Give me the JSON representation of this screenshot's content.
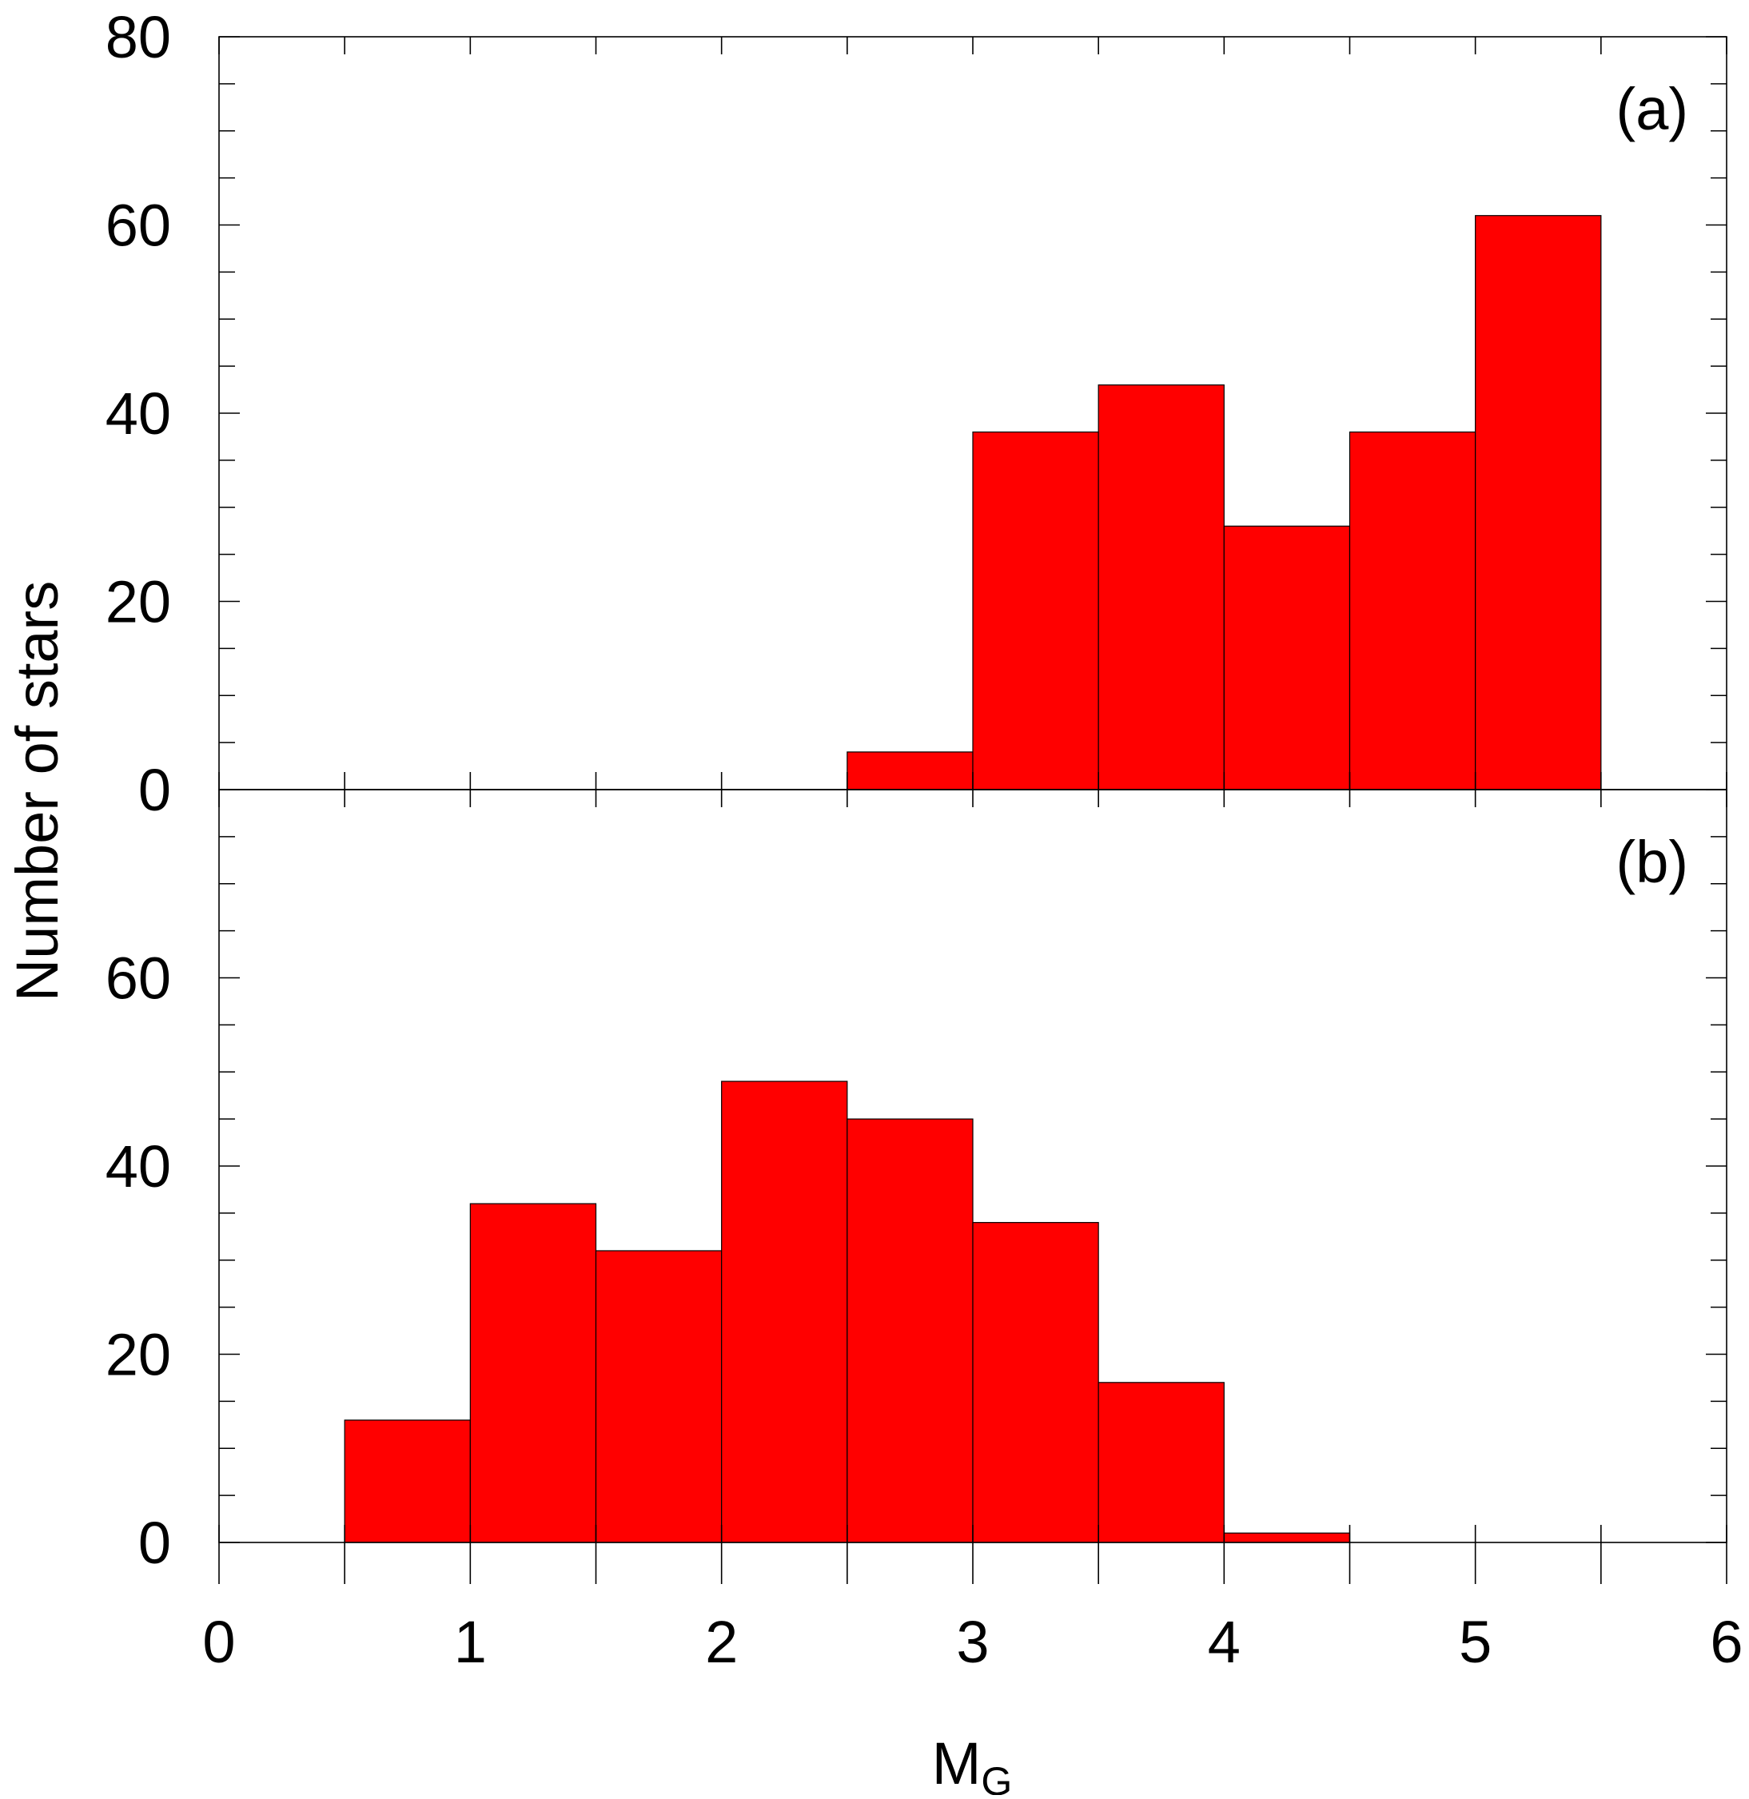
{
  "chart_data": {
    "type": "bar",
    "shared_x_axis": {
      "label_main": "M",
      "label_sub": "G",
      "xlim": [
        0,
        6
      ],
      "ticks": [
        "0",
        "1",
        "2",
        "3",
        "4",
        "5",
        "6"
      ],
      "tick_values": [
        0,
        1,
        2,
        3,
        4,
        5,
        6
      ],
      "minor_tick_step": 0.5
    },
    "y_axis_label": "Number of stars",
    "colors": {
      "bar_fill": "#ff0000",
      "bar_edge": "#000000",
      "frame": "#000000"
    },
    "grid": false,
    "panels": [
      {
        "id": "a",
        "label": "(a)",
        "label_position": "top-right",
        "ylim": [
          0,
          80
        ],
        "y_ticks": [
          "0",
          "20",
          "40",
          "60",
          "80"
        ],
        "y_tick_values": [
          0,
          20,
          40,
          60,
          80
        ],
        "minor_tick_step": 5,
        "bin_width": 0.5,
        "bins": [
          {
            "x0": 2.5,
            "x1": 3.0,
            "count": 4
          },
          {
            "x0": 3.0,
            "x1": 3.5,
            "count": 38
          },
          {
            "x0": 3.5,
            "x1": 4.0,
            "count": 43
          },
          {
            "x0": 4.0,
            "x1": 4.5,
            "count": 28
          },
          {
            "x0": 4.5,
            "x1": 5.0,
            "count": 38
          },
          {
            "x0": 5.0,
            "x1": 5.5,
            "count": 61
          }
        ]
      },
      {
        "id": "b",
        "label": "(b)",
        "label_position": "top-right",
        "ylim": [
          0,
          80
        ],
        "y_ticks": [
          "0",
          "20",
          "40",
          "60"
        ],
        "y_tick_values": [
          0,
          20,
          40,
          60
        ],
        "minor_tick_step": 5,
        "bin_width": 0.5,
        "bins": [
          {
            "x0": 0.5,
            "x1": 1.0,
            "count": 13
          },
          {
            "x0": 1.0,
            "x1": 1.5,
            "count": 36
          },
          {
            "x0": 1.5,
            "x1": 2.0,
            "count": 31
          },
          {
            "x0": 2.0,
            "x1": 2.5,
            "count": 49
          },
          {
            "x0": 2.5,
            "x1": 3.0,
            "count": 45
          },
          {
            "x0": 3.0,
            "x1": 3.5,
            "count": 34
          },
          {
            "x0": 3.5,
            "x1": 4.0,
            "count": 17
          },
          {
            "x0": 4.0,
            "x1": 4.5,
            "count": 1
          }
        ]
      }
    ]
  }
}
